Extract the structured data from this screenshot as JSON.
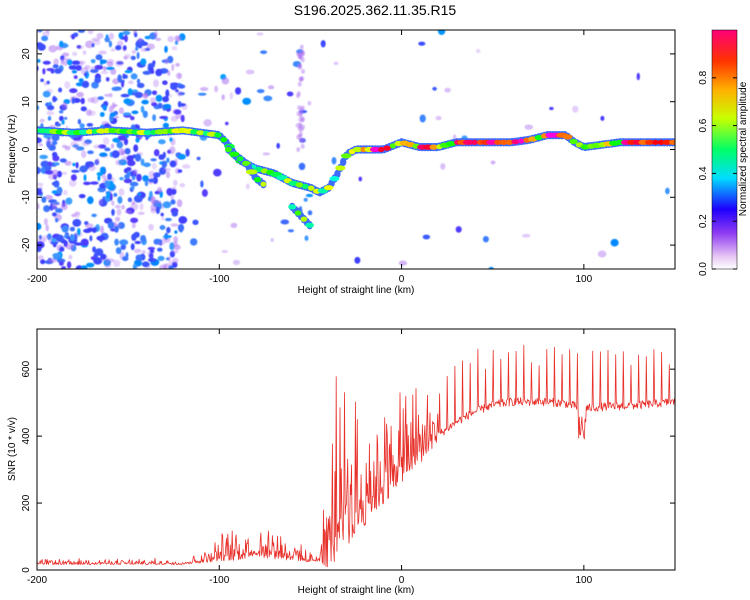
{
  "title": "S196.2025.362.11.35.R15",
  "chart_data": [
    {
      "type": "heatmap",
      "xlabel": "Height of straight line (km)",
      "ylabel": "Frequency (Hz)",
      "xlim": [
        -200,
        150
      ],
      "ylim": [
        -25,
        25
      ],
      "x_ticks": [
        -200,
        -100,
        0,
        100
      ],
      "x_tick_labels": [
        "-200",
        "-100",
        "0",
        "100"
      ],
      "y_ticks": [
        20,
        10,
        0,
        -10,
        -20
      ],
      "y_tick_labels": [
        "20",
        "10",
        "0",
        "-10",
        "-20"
      ],
      "colorbar": {
        "label": "Normalized spectral amplitude",
        "range": [
          0,
          1
        ],
        "ticks": [
          0.0,
          0.2,
          0.4,
          0.6,
          0.8
        ],
        "tick_labels": [
          "0.0",
          "0.2",
          "0.4",
          "0.6",
          "0.8"
        ]
      },
      "ridges": [
        {
          "name": "main",
          "points": [
            [
              -200,
              4
            ],
            [
              -180,
              3.5
            ],
            [
              -160,
              4
            ],
            [
              -140,
              3.5
            ],
            [
              -120,
              4
            ],
            [
              -110,
              3.5
            ],
            [
              -100,
              3
            ],
            [
              -95,
              1
            ],
            [
              -90,
              -2
            ],
            [
              -80,
              -4
            ],
            [
              -70,
              -5
            ],
            [
              -60,
              -7
            ],
            [
              -50,
              -8
            ],
            [
              -45,
              -9
            ],
            [
              -40,
              -8
            ],
            [
              -35,
              -5
            ],
            [
              -30,
              -1
            ],
            [
              -25,
              0
            ],
            [
              -20,
              0
            ],
            [
              -10,
              0
            ],
            [
              0,
              1.5
            ],
            [
              10,
              0.5
            ],
            [
              20,
              0.5
            ],
            [
              30,
              1.5
            ],
            [
              40,
              1.5
            ],
            [
              60,
              1.5
            ],
            [
              70,
              2
            ],
            [
              80,
              3
            ],
            [
              90,
              3
            ],
            [
              95,
              1.5
            ],
            [
              100,
              0.5
            ],
            [
              110,
              1
            ],
            [
              120,
              1.5
            ],
            [
              150,
              1.5
            ]
          ]
        },
        {
          "name": "branch",
          "points": [
            [
              -95,
              0
            ],
            [
              -85,
              -3
            ],
            [
              -80,
              -6
            ],
            [
              -75,
              -7.5
            ]
          ]
        },
        {
          "name": "lower",
          "points": [
            [
              -60,
              -12
            ],
            [
              -55,
              -14
            ],
            [
              -50,
              -16
            ]
          ]
        }
      ]
    },
    {
      "type": "line",
      "xlabel": "Height of straight line (km)",
      "ylabel": "SNR (10 * v/v)",
      "xlim": [
        -200,
        150
      ],
      "ylim": [
        0,
        720
      ],
      "x_ticks": [
        -200,
        -100,
        0,
        100
      ],
      "x_tick_labels": [
        "-200",
        "-100",
        "0",
        "100"
      ],
      "y_ticks": [
        0,
        200,
        400,
        600
      ],
      "y_tick_labels": [
        "0",
        "200",
        "400",
        "600"
      ],
      "series": [
        {
          "name": "SNR",
          "color": "#e8302a",
          "baseline": [
            [
              -200,
              18
            ],
            [
              -120,
              18
            ],
            [
              -110,
              25
            ],
            [
              -100,
              35
            ],
            [
              -90,
              40
            ],
            [
              -80,
              50
            ],
            [
              -70,
              45
            ],
            [
              -60,
              35
            ],
            [
              -50,
              25
            ],
            [
              -40,
              40
            ],
            [
              -35,
              100
            ],
            [
              -30,
              120
            ],
            [
              -25,
              140
            ],
            [
              -20,
              170
            ],
            [
              -15,
              200
            ],
            [
              -10,
              230
            ],
            [
              -5,
              260
            ],
            [
              0,
              290
            ],
            [
              5,
              310
            ],
            [
              10,
              340
            ],
            [
              15,
              370
            ],
            [
              20,
              400
            ],
            [
              25,
              420
            ],
            [
              30,
              440
            ],
            [
              40,
              470
            ],
            [
              50,
              490
            ],
            [
              60,
              500
            ],
            [
              80,
              500
            ],
            [
              90,
              495
            ],
            [
              100,
              480
            ],
            [
              110,
              485
            ],
            [
              130,
              490
            ],
            [
              150,
              500
            ]
          ],
          "spike_amplitude": [
            [
              -200,
              12
            ],
            [
              -120,
              12
            ],
            [
              -110,
              25
            ],
            [
              -100,
              55
            ],
            [
              -90,
              70
            ],
            [
              -80,
              65
            ],
            [
              -70,
              80
            ],
            [
              -60,
              45
            ],
            [
              -50,
              20
            ],
            [
              -45,
              40
            ],
            [
              -38,
              380
            ],
            [
              -30,
              320
            ],
            [
              -20,
              240
            ],
            [
              -10,
              220
            ],
            [
              0,
              190
            ],
            [
              10,
              180
            ],
            [
              20,
              150
            ],
            [
              30,
              180
            ],
            [
              40,
              190
            ],
            [
              60,
              180
            ],
            [
              80,
              170
            ],
            [
              100,
              180
            ],
            [
              120,
              170
            ],
            [
              150,
              170
            ]
          ]
        }
      ]
    }
  ]
}
